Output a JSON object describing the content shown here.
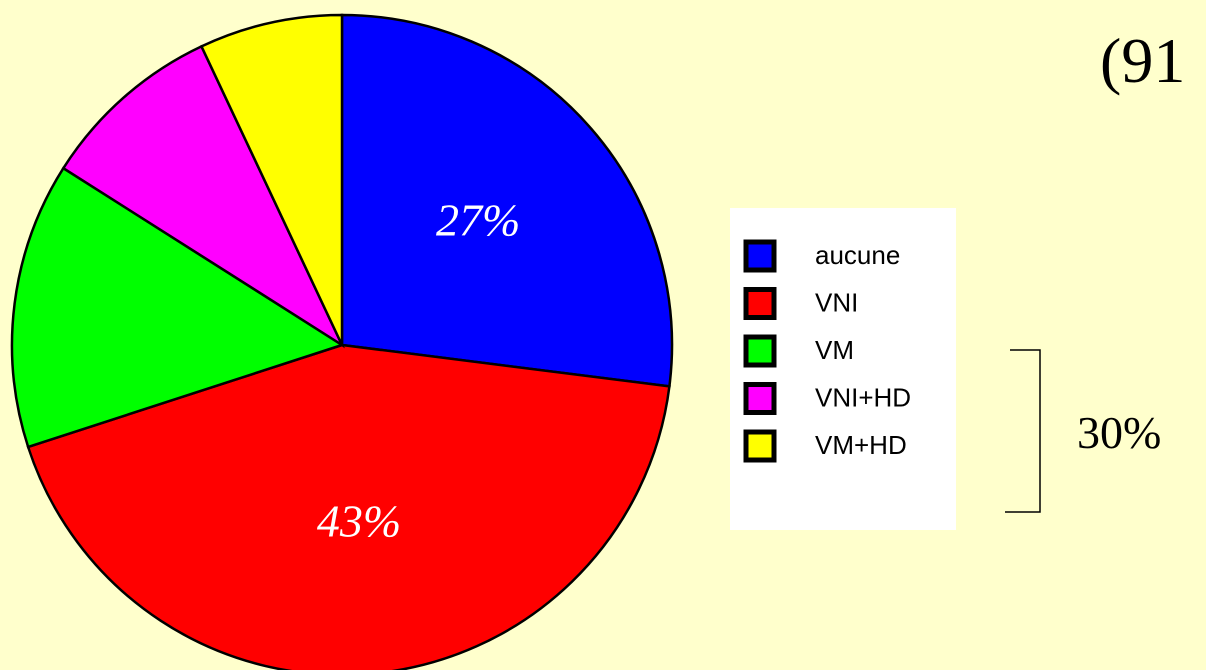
{
  "chart_data": {
    "type": "pie",
    "title": "(91",
    "categories": [
      "aucune",
      "VNI",
      "VM",
      "VNI+HD",
      "VM+HD"
    ],
    "values": [
      27,
      43,
      14,
      9,
      7
    ],
    "value_labels": [
      "27%",
      "43%",
      null,
      null,
      null
    ],
    "colors": [
      "#0000ff",
      "#ff0000",
      "#00ff00",
      "#ff00ff",
      "#ffff00"
    ],
    "annotation": "30%",
    "legend": "right"
  }
}
